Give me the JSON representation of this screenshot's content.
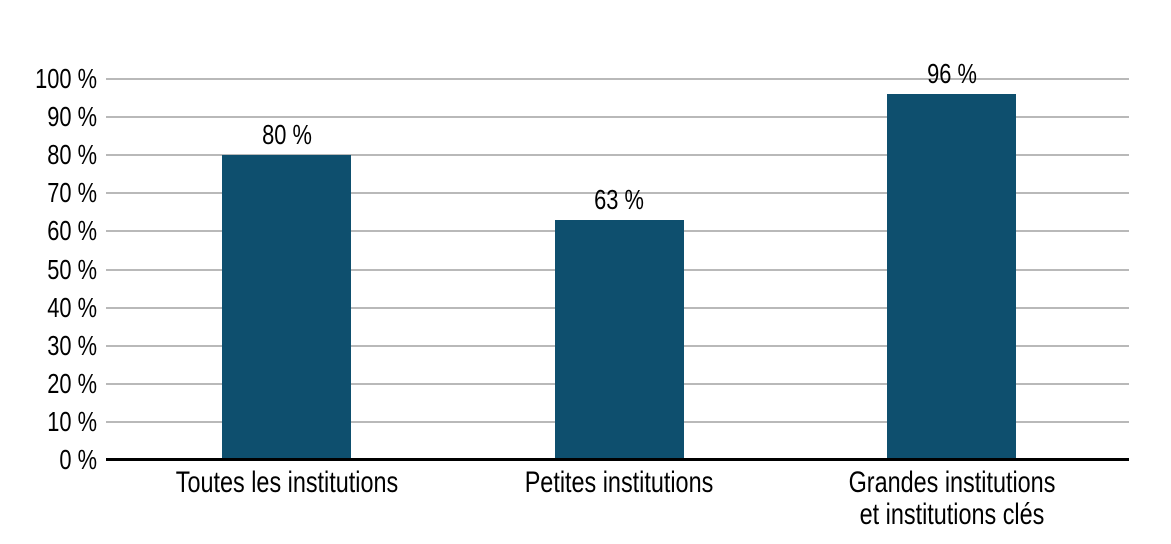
{
  "chart_data": {
    "type": "bar",
    "title": "",
    "xlabel": "",
    "ylabel": "",
    "categories": [
      "Toutes les institutions",
      "Petites institutions",
      "Grandes institutions\net institutions clés"
    ],
    "values": [
      80,
      63,
      96
    ],
    "value_labels": [
      "80 %",
      "63 %",
      "96 %"
    ],
    "y_ticks": [
      {
        "value": 0,
        "label": "0 %"
      },
      {
        "value": 10,
        "label": "10 %"
      },
      {
        "value": 20,
        "label": "20 %"
      },
      {
        "value": 30,
        "label": "30 %"
      },
      {
        "value": 40,
        "label": "40 %"
      },
      {
        "value": 50,
        "label": "50 %"
      },
      {
        "value": 60,
        "label": "60 %"
      },
      {
        "value": 70,
        "label": "70 %"
      },
      {
        "value": 80,
        "label": "80 %"
      },
      {
        "value": 90,
        "label": "90 %"
      },
      {
        "value": 100,
        "label": "100 %"
      }
    ],
    "ylim": [
      0,
      100
    ],
    "grid": "on",
    "legend": "none",
    "colors": {
      "bar": "#0E4F6E",
      "gridline": "#B9B9B9",
      "axis": "#000000",
      "text": "#000000",
      "background": "#FFFFFF"
    }
  }
}
